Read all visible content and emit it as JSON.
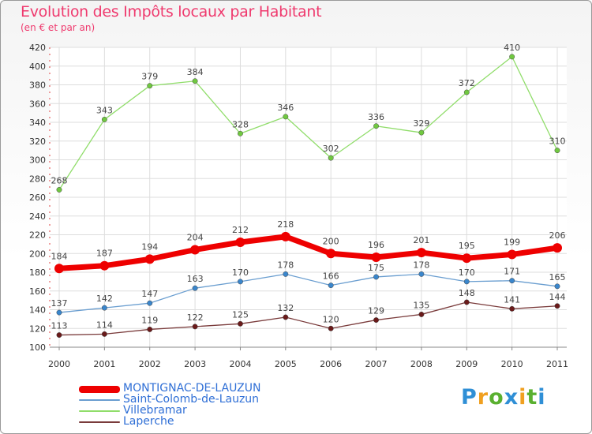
{
  "title": "Evolution des Impôts locaux par Habitant",
  "subtitle": "(en € et par an)",
  "logo": {
    "letters": [
      {
        "ch": "P",
        "color": "#2f8fd6"
      },
      {
        "ch": "r",
        "color": "#f0a020"
      },
      {
        "ch": "o",
        "color": "#5ab030"
      },
      {
        "ch": "x",
        "color": "#2f8fd6"
      },
      {
        "ch": "i",
        "color": "#f0a020"
      },
      {
        "ch": "t",
        "color": "#5ab030"
      },
      {
        "ch": "i",
        "color": "#2f8fd6"
      }
    ]
  },
  "chart_data": {
    "type": "line",
    "x": [
      2000,
      2001,
      2002,
      2003,
      2004,
      2005,
      2006,
      2007,
      2008,
      2009,
      2010,
      2011
    ],
    "ylim": [
      100,
      420
    ],
    "yticks": [
      100,
      120,
      140,
      160,
      180,
      200,
      220,
      240,
      260,
      280,
      300,
      320,
      340,
      360,
      380,
      400,
      420
    ],
    "grid": true,
    "legend_position": "bottom-left",
    "series": [
      {
        "name": "MONTIGNAC-DE-LAUZUN",
        "color": "#ee0000",
        "marker": "#ee0000",
        "values": [
          184,
          187,
          194,
          204,
          212,
          218,
          200,
          196,
          201,
          195,
          199,
          206
        ]
      },
      {
        "name": "Saint-Colomb-de-Lauzun",
        "color": "#6a9ed0",
        "marker": "#3a86cc",
        "values": [
          137,
          142,
          147,
          163,
          170,
          178,
          166,
          175,
          178,
          170,
          171,
          165
        ]
      },
      {
        "name": "Villebramar",
        "color": "#90dd6a",
        "marker": "#70c840",
        "values": [
          268,
          343,
          379,
          384,
          328,
          346,
          302,
          336,
          329,
          372,
          410,
          310
        ]
      },
      {
        "name": "Laperche",
        "color": "#7a3b3b",
        "marker": "#6a1a1a",
        "values": [
          113,
          114,
          119,
          122,
          125,
          132,
          120,
          129,
          135,
          148,
          141,
          144
        ]
      }
    ]
  }
}
